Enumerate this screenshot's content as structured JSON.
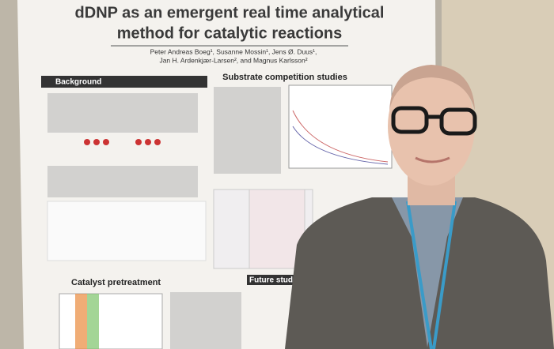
{
  "poster": {
    "title": [
      "dDNP as an emergent real time analytical",
      "method for catalytic reactions"
    ],
    "authors": [
      "Peter Andreas Boeg¹, Susanne Mossin¹, Jens Ø. Duus¹,",
      "Jan H. Ardenkjær-Larsen², and Magnus Karlsson²"
    ],
    "sections": [
      "Background",
      "Substrate competition studies",
      "Catalyst pretreatment",
      "Future studie"
    ]
  }
}
